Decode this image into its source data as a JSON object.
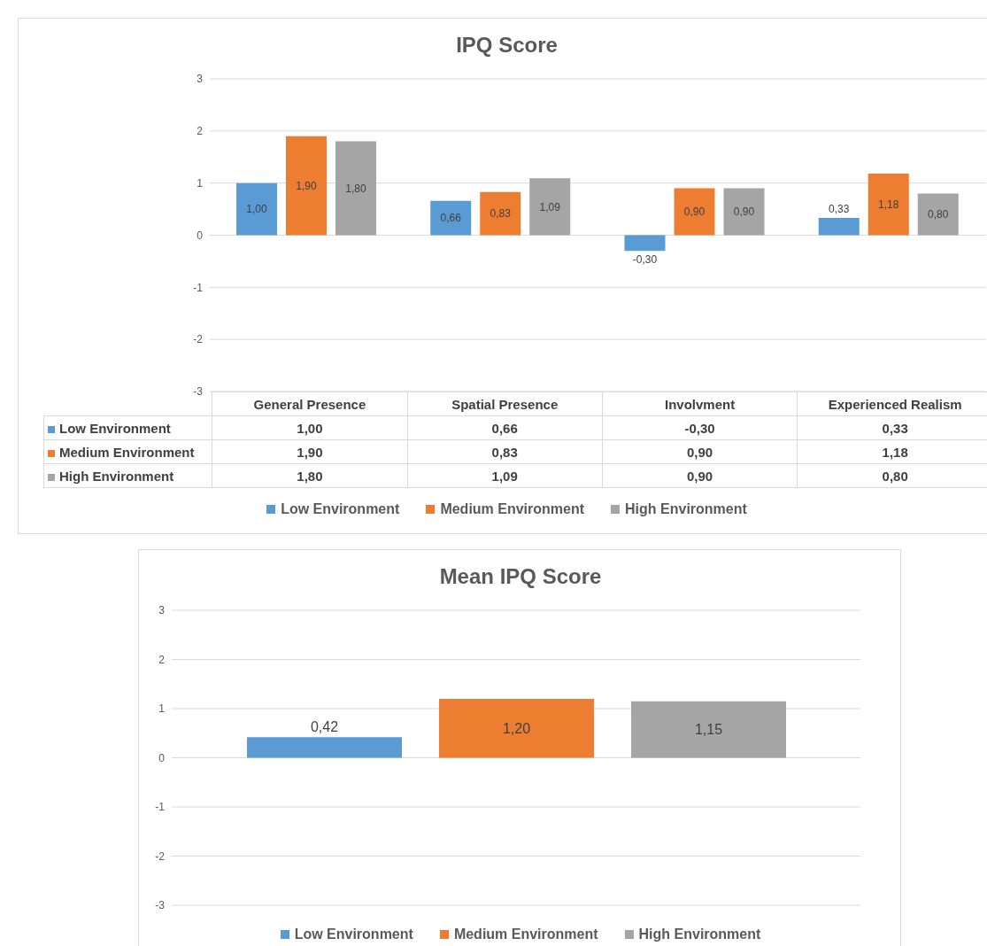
{
  "chart_data": [
    {
      "type": "bar",
      "title": "IPQ Score",
      "categories": [
        "General Presence",
        "Spatial Presence",
        "Involvment",
        "Experienced Realism"
      ],
      "series": [
        {
          "name": "Low Environment",
          "color": "#5b9bd5",
          "values": [
            1.0,
            0.66,
            -0.3,
            0.33
          ],
          "value_labels": [
            "1,00",
            "0,66",
            "-0,30",
            "0,33"
          ]
        },
        {
          "name": "Medium Environment",
          "color": "#ed7d31",
          "values": [
            1.9,
            0.83,
            0.9,
            1.18
          ],
          "value_labels": [
            "1,90",
            "0,83",
            "0,90",
            "1,18"
          ]
        },
        {
          "name": "High Environment",
          "color": "#a5a5a5",
          "values": [
            1.8,
            1.09,
            0.9,
            0.8
          ],
          "value_labels": [
            "1,80",
            "1,09",
            "0,90",
            "0,80"
          ]
        }
      ],
      "ylim": [
        -3,
        3
      ],
      "yticks": [
        -3,
        -2,
        -1,
        0,
        1,
        2,
        3
      ],
      "grid": "y",
      "legend": "bottom"
    },
    {
      "type": "bar",
      "title": "Mean IPQ Score",
      "categories": [
        null
      ],
      "series": [
        {
          "name": "Low Environment",
          "color": "#5b9bd5",
          "values": [
            0.42
          ],
          "value_labels": [
            "0,42"
          ]
        },
        {
          "name": "Medium Environment",
          "color": "#ed7d31",
          "values": [
            1.2
          ],
          "value_labels": [
            "1,20"
          ]
        },
        {
          "name": "High Environment",
          "color": "#a5a5a5",
          "values": [
            1.15
          ],
          "value_labels": [
            "1,15"
          ]
        }
      ],
      "ylim": [
        -3,
        3
      ],
      "yticks": [
        -3,
        -2,
        -1,
        0,
        1,
        2,
        3
      ],
      "grid": "y",
      "legend": "bottom"
    }
  ]
}
